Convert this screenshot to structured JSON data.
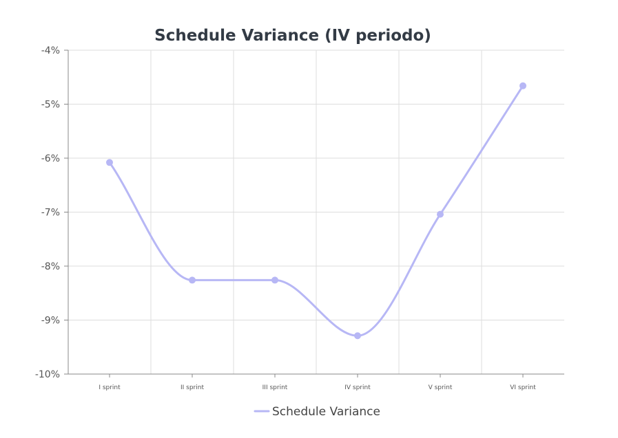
{
  "chart_data": {
    "type": "line",
    "title": "Schedule Variance (IV periodo)",
    "xlabel": "",
    "ylabel": "",
    "categories": [
      "I sprint",
      "II sprint",
      "III sprint",
      "IV sprint",
      "V sprint",
      "VI sprint"
    ],
    "series": [
      {
        "name": "Schedule Variance",
        "values": [
          -6.08,
          -8.26,
          -8.26,
          -9.29,
          -7.04,
          -4.66
        ],
        "color": "#b7b7f5"
      }
    ],
    "ylim": [
      -10,
      -4
    ],
    "yticks": [
      -4,
      -5,
      -6,
      -7,
      -8,
      -9,
      -10
    ],
    "ytick_labels": [
      "-4%",
      "-5%",
      "-6%",
      "-7%",
      "-8%",
      "-9%",
      "-10%"
    ],
    "grid": true,
    "smooth": true,
    "legend": {
      "position": "bottom",
      "entries": [
        "Schedule Variance"
      ]
    },
    "colors": {
      "grid": "#dddddd",
      "axis": "#888888",
      "series": "#b7b7f5",
      "title": "#333b45"
    }
  }
}
